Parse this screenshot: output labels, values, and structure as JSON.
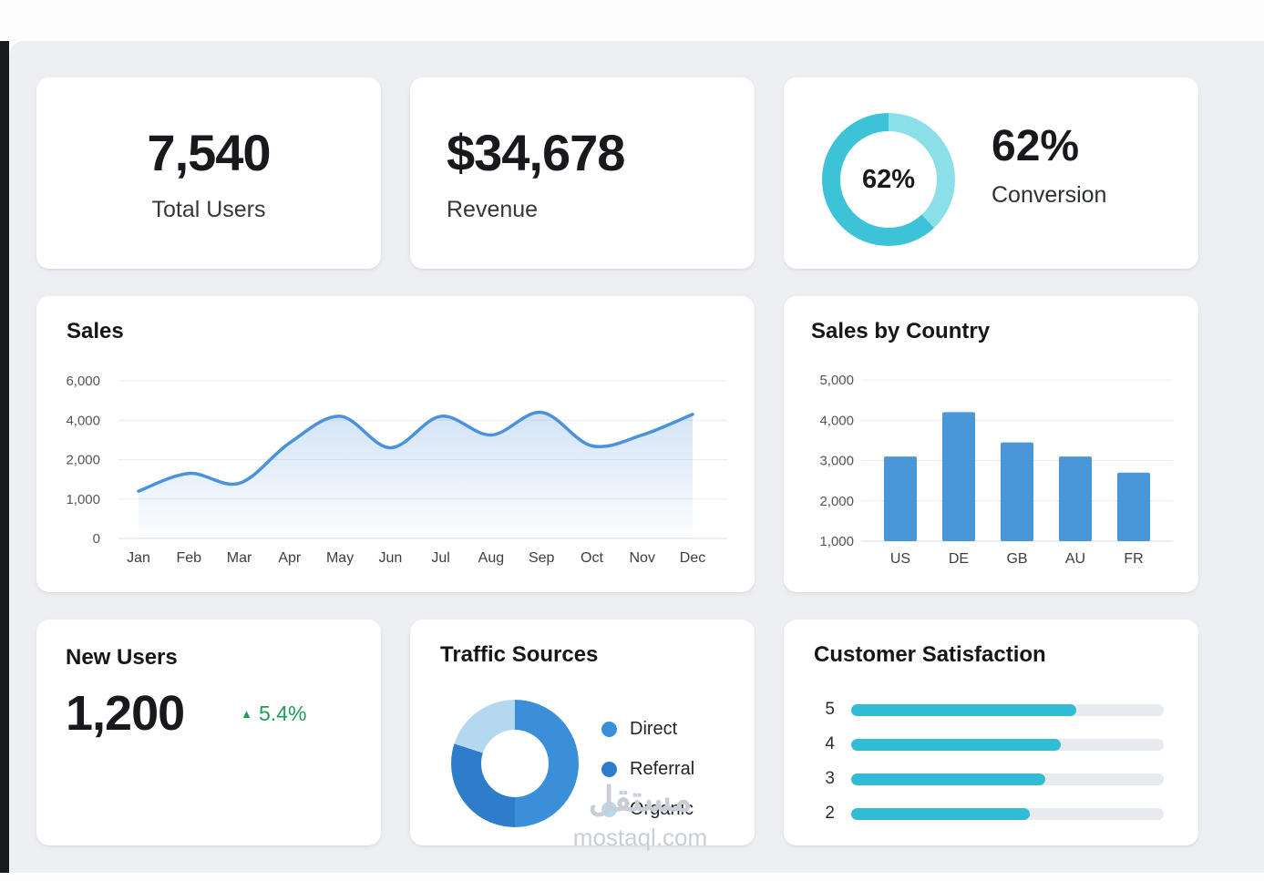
{
  "page": {
    "watermark_line1": "مستقل",
    "watermark_line2": "mostaql.com"
  },
  "cards": {
    "total_users": {
      "value": "7,540",
      "label": "Total Users"
    },
    "revenue": {
      "value": "$34,678",
      "label": "Revenue"
    },
    "conversion": {
      "donut_label": "62%",
      "value": "62%",
      "label": "Conversion"
    },
    "sales": {
      "title": "Sales"
    },
    "sales_by_country": {
      "title": "Sales by Country"
    },
    "new_users": {
      "title": "New Users",
      "value": "1,200",
      "delta_arrow": "▲",
      "delta": "5.4%",
      "delta_color": "#1f9d55"
    },
    "traffic_sources": {
      "title": "Traffic Sources"
    },
    "satisfaction": {
      "title": "Customer Satisfaction"
    }
  },
  "chart_data": [
    {
      "id": "conversion_donut",
      "type": "pie",
      "title": "Conversion",
      "donut": true,
      "center_label": "62%",
      "segments": [
        {
          "label": "Remaining",
          "value": 38,
          "color": "#8adfe9"
        },
        {
          "label": "Converted",
          "value": 62,
          "color": "#3cc3d8"
        }
      ]
    },
    {
      "id": "sales_line",
      "type": "line",
      "title": "Sales",
      "x": [
        "Jan",
        "Feb",
        "Mar",
        "Apr",
        "May",
        "Jun",
        "Jul",
        "Aug",
        "Sep",
        "Oct",
        "Nov",
        "Dec"
      ],
      "values": [
        1200,
        1650,
        1400,
        2850,
        4200,
        2600,
        4200,
        3250,
        4400,
        2700,
        3250,
        4300
      ],
      "ytick_labels": [
        "6,000",
        "4,000",
        "2,000",
        "1,000",
        "0"
      ],
      "ytick_values": [
        6000,
        4000,
        2000,
        1000,
        0
      ],
      "line_color": "#4a92dc",
      "area_fill": "#74a9e1",
      "grid": true,
      "legend": "none"
    },
    {
      "id": "country_bar",
      "type": "bar",
      "title": "Sales by Country",
      "categories": [
        "US",
        "DE",
        "GB",
        "AU",
        "FR"
      ],
      "values": [
        3100,
        4200,
        3450,
        3100,
        2700
      ],
      "ytick_labels": [
        "5,000",
        "4,000",
        "3,000",
        "2,000",
        "1,000"
      ],
      "ytick_values": [
        5000,
        4000,
        3000,
        2000,
        1000
      ],
      "baseline": 1000,
      "bar_color": "#4b96d9",
      "grid": true,
      "legend": "none"
    },
    {
      "id": "traffic_pie",
      "type": "pie",
      "title": "Traffic Sources",
      "donut": true,
      "legend_position": "right",
      "segments": [
        {
          "label": "Direct",
          "value": 50,
          "color": "#3b8fd9"
        },
        {
          "label": "Referral",
          "value": 30,
          "color": "#2d7dcb"
        },
        {
          "label": "Organic",
          "value": 20,
          "color": "#b4d8ef"
        }
      ]
    },
    {
      "id": "satisfaction_bars",
      "type": "bar",
      "orientation": "horizontal",
      "title": "Customer Satisfaction",
      "categories": [
        "5",
        "4",
        "3",
        "2"
      ],
      "values": [
        72,
        67,
        62,
        57
      ],
      "max": 100,
      "bar_color": "#2fbcd4",
      "track_color": "#e7eaee"
    }
  ]
}
